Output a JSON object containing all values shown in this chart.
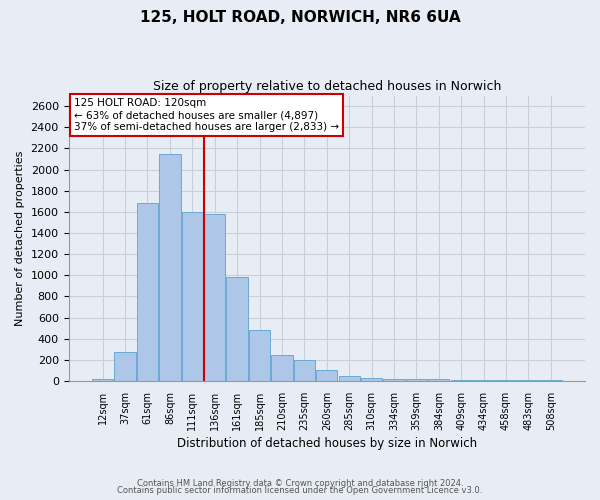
{
  "title1": "125, HOLT ROAD, NORWICH, NR6 6UA",
  "title2": "Size of property relative to detached houses in Norwich",
  "xlabel": "Distribution of detached houses by size in Norwich",
  "ylabel": "Number of detached properties",
  "categories": [
    "12sqm",
    "37sqm",
    "61sqm",
    "86sqm",
    "111sqm",
    "136sqm",
    "161sqm",
    "185sqm",
    "210sqm",
    "235sqm",
    "260sqm",
    "285sqm",
    "310sqm",
    "334sqm",
    "359sqm",
    "384sqm",
    "409sqm",
    "434sqm",
    "458sqm",
    "483sqm",
    "508sqm"
  ],
  "values": [
    18,
    270,
    1680,
    2150,
    1600,
    1580,
    980,
    480,
    250,
    200,
    100,
    50,
    25,
    20,
    18,
    15,
    12,
    12,
    10,
    6,
    10
  ],
  "bar_color": "#aec6e8",
  "bar_edge_color": "#6aaad4",
  "red_line_x": 4.5,
  "annotation_line1": "125 HOLT ROAD: 120sqm",
  "annotation_line2": "← 63% of detached houses are smaller (4,897)",
  "annotation_line3": "37% of semi-detached houses are larger (2,833) →",
  "ylim": [
    0,
    2700
  ],
  "yticks": [
    0,
    200,
    400,
    600,
    800,
    1000,
    1200,
    1400,
    1600,
    1800,
    2000,
    2200,
    2400,
    2600
  ],
  "footer1": "Contains HM Land Registry data © Crown copyright and database right 2024.",
  "footer2": "Contains public sector information licensed under the Open Government Licence v3.0.",
  "bg_color": "#e8edf5",
  "plot_bg_color": "#e8edf5",
  "grid_color": "#c8d0dc",
  "annotation_box_color": "#ffffff",
  "annotation_box_edge": "#cc0000",
  "red_line_color": "#cc0000",
  "figsize": [
    6.0,
    5.0
  ],
  "dpi": 100
}
